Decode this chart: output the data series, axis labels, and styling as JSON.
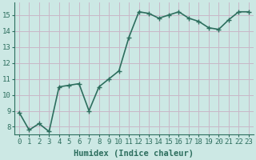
{
  "x": [
    0,
    1,
    2,
    3,
    4,
    5,
    6,
    7,
    8,
    9,
    10,
    11,
    12,
    13,
    14,
    15,
    16,
    17,
    18,
    19,
    20,
    21,
    22,
    23
  ],
  "y": [
    8.9,
    7.8,
    8.2,
    7.7,
    10.5,
    10.6,
    10.7,
    9.0,
    10.5,
    11.0,
    11.5,
    13.6,
    15.2,
    15.1,
    14.8,
    15.0,
    15.2,
    14.8,
    14.6,
    14.2,
    14.1,
    14.7,
    15.2,
    15.2
  ],
  "line_color": "#2d6e5e",
  "marker": "+",
  "bg_color": "#cce8e4",
  "grid_color_h": "#c8b8c8",
  "grid_color_v": "#c8b8c8",
  "xlabel": "Humidex (Indice chaleur)",
  "xlim": [
    -0.5,
    23.5
  ],
  "ylim": [
    7.5,
    15.8
  ],
  "yticks": [
    8,
    9,
    10,
    11,
    12,
    13,
    14,
    15
  ],
  "xticks": [
    0,
    1,
    2,
    3,
    4,
    5,
    6,
    7,
    8,
    9,
    10,
    11,
    12,
    13,
    14,
    15,
    16,
    17,
    18,
    19,
    20,
    21,
    22,
    23
  ],
  "tick_color": "#2d6e5e",
  "label_fontsize": 7.5,
  "tick_fontsize": 6.5,
  "linewidth": 1.2,
  "markersize": 4,
  "markeredgewidth": 1.0
}
